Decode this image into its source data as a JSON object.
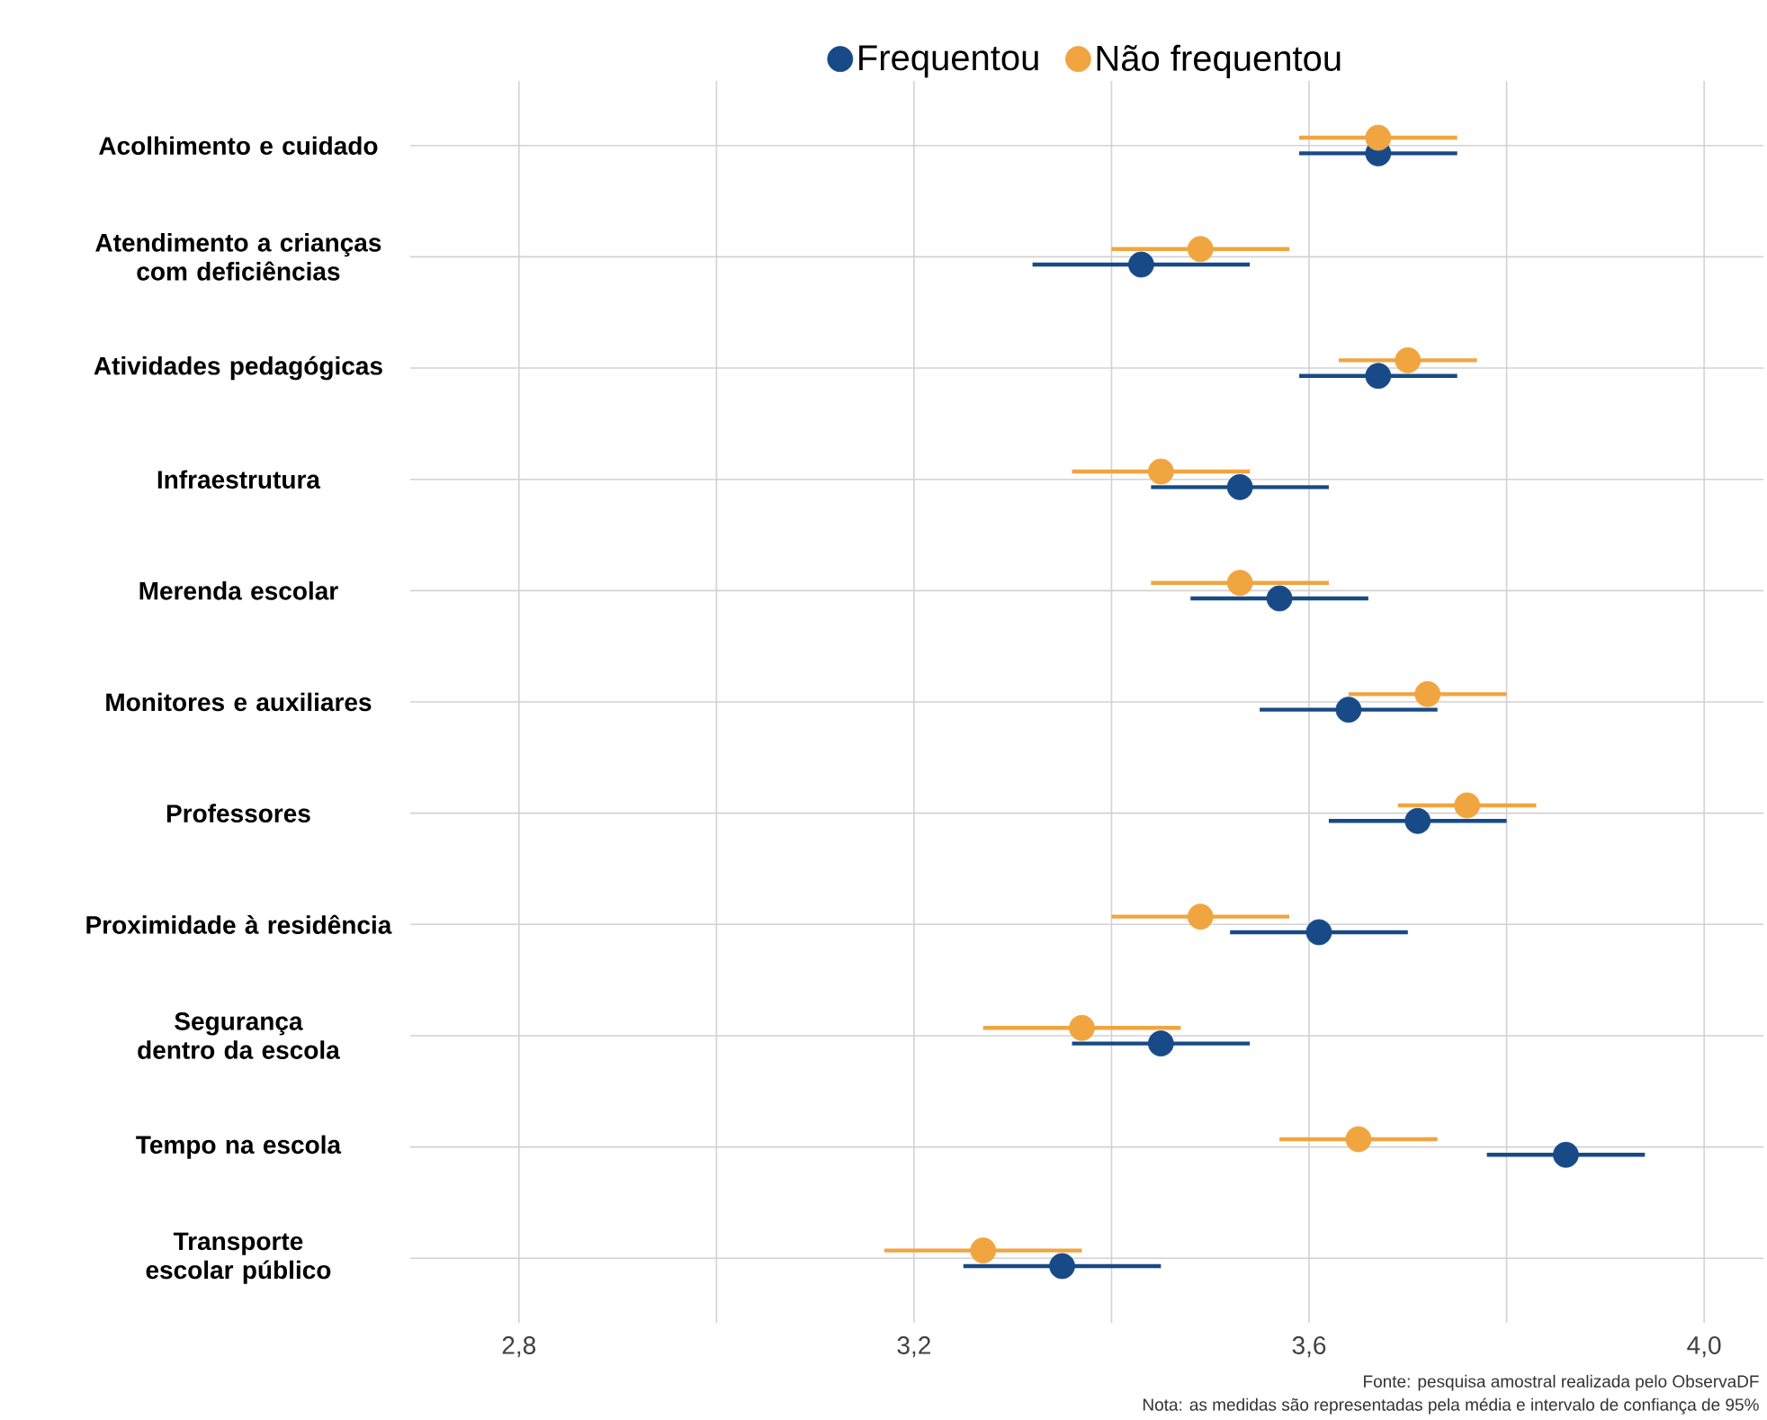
{
  "chart_data": {
    "type": "scatter",
    "orientation": "horizontal",
    "categories": [
      "Acolhimento e cuidado",
      "Atendimento a crianças com deficiências",
      "Atividades pedagógicas",
      "Infraestrutura",
      "Merenda escolar",
      "Monitores e auxiliares",
      "Professores",
      "Proximidade à residência",
      "Segurança dentro da escola",
      "Tempo na escola",
      "Transporte escolar público"
    ],
    "series": [
      {
        "name": "Frequentou",
        "color": "#174a87",
        "values": [
          3.67,
          3.43,
          3.67,
          3.53,
          3.57,
          3.64,
          3.71,
          3.61,
          3.45,
          3.86,
          3.35
        ],
        "errors": [
          0.08,
          0.11,
          0.08,
          0.09,
          0.09,
          0.09,
          0.09,
          0.09,
          0.09,
          0.08,
          0.1
        ]
      },
      {
        "name": "Não frequentou",
        "color": "#f0a540",
        "values": [
          3.67,
          3.49,
          3.7,
          3.45,
          3.53,
          3.72,
          3.76,
          3.49,
          3.37,
          3.65,
          3.27
        ],
        "errors": [
          0.08,
          0.09,
          0.07,
          0.09,
          0.09,
          0.08,
          0.07,
          0.09,
          0.1,
          0.08,
          0.1
        ]
      }
    ],
    "xlim": [
      2.69,
      4.06
    ],
    "xticks": [
      {
        "value": 2.8,
        "label": "2,8"
      },
      {
        "value": 3.0,
        "label": null
      },
      {
        "value": 3.2,
        "label": "3,2"
      },
      {
        "value": 3.4,
        "label": null
      },
      {
        "value": 3.6,
        "label": "3,6"
      },
      {
        "value": 3.8,
        "label": null
      },
      {
        "value": 4.0,
        "label": "4,0"
      }
    ],
    "grid": true,
    "legend": "top",
    "marker": "circle",
    "annotations": [
      "Fonte: pesquisa amostral realizada pelo ObservaDF",
      "Nota: as medidas são representadas pela média e intervalo de confiança de 95%"
    ]
  }
}
